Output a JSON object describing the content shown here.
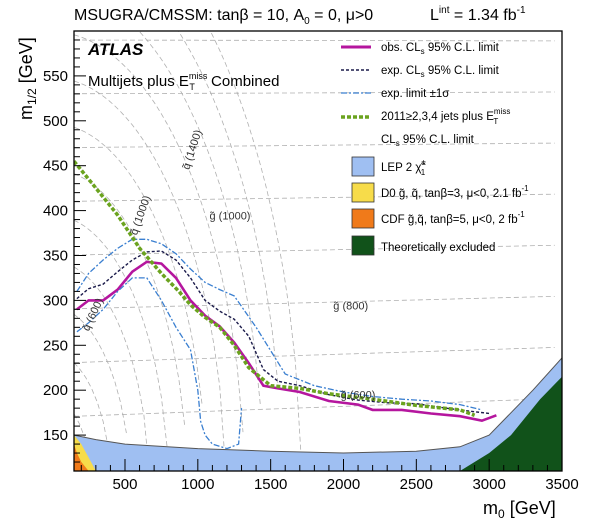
{
  "header": {
    "left": "MSUGRA/CMSSM: tanβ = 10, A",
    "left_sub": "0",
    "left_tail": " = 0, μ>0",
    "lumi_main": "L",
    "lumi_sup": "int",
    "lumi_tail": " = 1.34 fb",
    "lumi_exp": "-1"
  },
  "plot": {
    "atlas": "ATLAS",
    "subtitle_main": "Multijets plus E",
    "subtitle_sup": "miss",
    "subtitle_sub": "T",
    "subtitle_tail": " Combined"
  },
  "axes": {
    "x_main": "m",
    "x_sub": "0",
    "x_unit": " [GeV]",
    "y_main": "m",
    "y_sub": "1/2",
    "y_unit": " [GeV]"
  },
  "legend": {
    "obs": "obs. CL",
    "obs_sub": "s",
    "obs_tail": " 95% C.L. limit",
    "exp": "exp. CL",
    "exp_sub": "s",
    "exp_tail": " 95% C.L. limit",
    "exp_band": "exp. limit ±1σ",
    "prev_main": "2011≥2,3,4 jets plus E",
    "prev_sup": "miss",
    "prev_sub": "T",
    "prev_line2": "CL",
    "prev_line2_sub": "s",
    "prev_line2_tail": " 95% C.L. limit",
    "lep": "LEP 2 χ̃",
    "lep_sup": "±",
    "lep_sub": "1",
    "d0": "D0 g̃, q̃, tanβ=3, μ<0, 2.1 fb",
    "d0_sup": "-1",
    "cdf": "CDF g̃,q̃, tanβ=5, μ<0, 2 fb",
    "cdf_sup": "-1",
    "theo": "Theoretically excluded"
  },
  "colors": {
    "obs": "#b5169e",
    "exp": "#1a1a4a",
    "exp_band": "#3a7fd0",
    "prev": "#6ba31f",
    "lep": "#9fbff2",
    "d0": "#f7dc4a",
    "cdf": "#f07a1a",
    "theo": "#11521a",
    "grid": "#b0b0b0"
  },
  "chart_data": {
    "type": "line",
    "xlim": [
      150,
      3500
    ],
    "ylim": [
      110,
      600
    ],
    "x_ticks": [
      500,
      1000,
      1500,
      2000,
      2500,
      3000,
      3500
    ],
    "y_ticks": [
      150,
      200,
      250,
      300,
      350,
      400,
      450,
      500,
      550
    ],
    "mass_labels": [
      {
        "text": "q̃ (1400)",
        "x": 940,
        "y": 445,
        "angle": -72
      },
      {
        "text": "g̃ (1000)",
        "x": 1080,
        "y": 390,
        "angle": 0
      },
      {
        "text": "q̃ (1000)",
        "x": 580,
        "y": 372,
        "angle": -70
      },
      {
        "text": "g̃ (800)",
        "x": 1930,
        "y": 290,
        "angle": 0
      },
      {
        "text": "q̃ (600)",
        "x": 250,
        "y": 265,
        "angle": -65
      },
      {
        "text": "g̃ (600)",
        "x": 1980,
        "y": 191,
        "angle": 0
      }
    ],
    "series": [
      {
        "name": "obs. CLs 95% C.L. limit",
        "x": [
          170,
          250,
          350,
          450,
          550,
          650,
          750,
          850,
          950,
          1050,
          1150,
          1250,
          1350,
          1450,
          1550,
          1700,
          1900,
          2100,
          2200,
          2400,
          2600,
          2800,
          2950,
          3050
        ],
        "y": [
          290,
          300,
          300,
          312,
          332,
          343,
          341,
          325,
          300,
          283,
          271,
          253,
          230,
          205,
          202,
          198,
          188,
          184,
          178,
          178,
          174,
          171,
          166,
          172
        ]
      },
      {
        "name": "exp. CLs 95% C.L. limit",
        "x": [
          170,
          250,
          350,
          450,
          550,
          650,
          750,
          850,
          950,
          1050,
          1150,
          1250,
          1350,
          1450,
          1550,
          1700,
          1900,
          2100,
          2300,
          2500,
          2700,
          2900,
          3000
        ],
        "y": [
          302,
          313,
          318,
          332,
          345,
          354,
          355,
          345,
          325,
          300,
          288,
          279,
          260,
          223,
          210,
          205,
          195,
          189,
          186,
          185,
          180,
          176,
          174
        ]
      },
      {
        "name": "exp. limit ±1σ",
        "x": [
          170,
          250,
          350,
          450,
          550,
          650,
          750,
          850,
          950,
          1050,
          1150,
          1250,
          1400,
          1600,
          1800,
          2000,
          2200,
          2400,
          2600,
          2800,
          2950
        ],
        "y": [
          310,
          330,
          345,
          358,
          368,
          368,
          363,
          352,
          335,
          320,
          312,
          305,
          270,
          218,
          205,
          198,
          193,
          190,
          188,
          184,
          178
        ]
      },
      {
        "name": "exp. limit ±1σ",
        "x": [
          170,
          250,
          350,
          450,
          550,
          650,
          750,
          850,
          950,
          1000,
          1020,
          1050,
          1100,
          1200,
          1280,
          1300
        ],
        "y": [
          265,
          275,
          290,
          310,
          325,
          325,
          300,
          270,
          245,
          200,
          165,
          150,
          140,
          135,
          140,
          180
        ]
      },
      {
        "name": "2011≥2,3,4 jets plus ETmiss CLs 95% C.L. limit",
        "x": [
          150,
          300,
          450,
          600,
          750,
          870,
          950,
          1050,
          1150,
          1250,
          1350,
          1500,
          1700,
          1900,
          2200,
          2500,
          2800,
          2900
        ],
        "y": [
          455,
          425,
          395,
          358,
          330,
          310,
          295,
          281,
          270,
          250,
          225,
          205,
          202,
          196,
          190,
          183,
          178,
          172
        ]
      }
    ],
    "regions": [
      {
        "name": "LEP 2 χ1±",
        "x": [
          150,
          300,
          500,
          1000,
          1500,
          2000,
          2500,
          2800,
          3000,
          3300,
          3500,
          3500,
          150
        ],
        "y": [
          150,
          145,
          140,
          135,
          132,
          130,
          132,
          137,
          150,
          200,
          236,
          110,
          110
        ]
      },
      {
        "name": "D0 g̃, q̃, tanβ=3, μ<0, 2.1 fb-1",
        "x": [
          150,
          200,
          250,
          300,
          150
        ],
        "y": [
          150,
          140,
          125,
          110,
          110
        ]
      },
      {
        "name": "CDF g̃,q̃, tanβ=5, μ<0, 2 fb-1",
        "x": [
          150,
          170,
          200,
          250,
          150
        ],
        "y": [
          140,
          130,
          120,
          110,
          110
        ]
      },
      {
        "name": "Theoretically excluded",
        "x": [
          2800,
          3000,
          3150,
          3350,
          3500,
          3500,
          2800
        ],
        "y": [
          110,
          130,
          150,
          190,
          215,
          110,
          110
        ]
      }
    ]
  }
}
